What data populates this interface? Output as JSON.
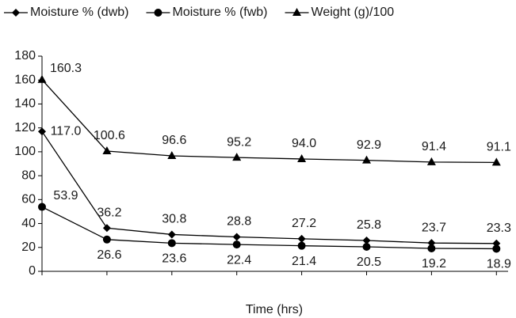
{
  "chart_data": {
    "type": "line",
    "x_label": "Time (hrs)",
    "categories": [
      null,
      null,
      null,
      null,
      null,
      null,
      null,
      null
    ],
    "series": [
      {
        "name": "Moisture % (dwb)",
        "color": "#000000",
        "marker": "diamond",
        "values": [
          117.0,
          36.2,
          30.8,
          28.8,
          27.2,
          25.8,
          23.7,
          23.3
        ],
        "value_labels": [
          "117.0",
          "36.2",
          "30.8",
          "28.8",
          "27.2",
          "25.8",
          "23.7",
          "23.3"
        ]
      },
      {
        "name": "Moisture % (fwb)",
        "color": "#000000",
        "marker": "circle",
        "values": [
          53.9,
          26.6,
          23.6,
          22.4,
          21.4,
          20.5,
          19.2,
          18.9
        ],
        "value_labels": [
          "53.9",
          "26.6",
          "23.6",
          "22.4",
          "21.4",
          "20.5",
          "19.2",
          "18.9"
        ]
      },
      {
        "name": "Weight (g)/100",
        "color": "#000000",
        "marker": "triangle",
        "values": [
          160.3,
          100.6,
          96.6,
          95.2,
          94.0,
          92.9,
          91.4,
          91.1
        ],
        "value_labels": [
          "160.3",
          "100.6",
          "96.6",
          "95.2",
          "94.0",
          "92.9",
          "91.4",
          "91.1"
        ]
      }
    ],
    "ylim": [
      0,
      180
    ],
    "yticks": [
      0,
      20,
      40,
      60,
      80,
      100,
      120,
      140,
      160,
      180
    ],
    "legend": "top",
    "grid": false
  }
}
